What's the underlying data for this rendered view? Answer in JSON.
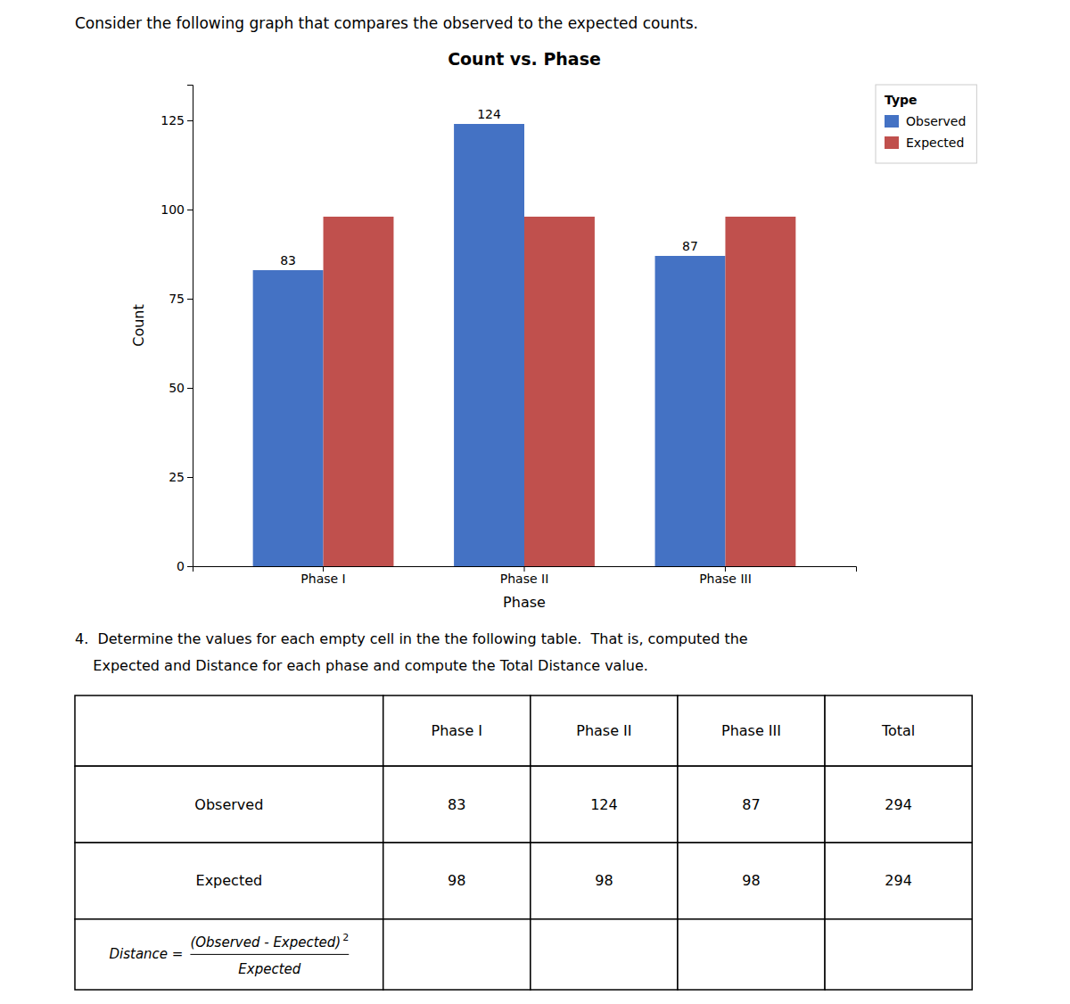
{
  "intro": "Consider the following graph that compares the observed to the expected counts.",
  "chart_data": {
    "type": "bar",
    "title": "Count vs. Phase",
    "categories": [
      "Phase I",
      "Phase II",
      "Phase III"
    ],
    "series": [
      {
        "name": "Observed",
        "color": "#4472C4",
        "values": [
          83,
          124,
          87
        ],
        "data_labels": true
      },
      {
        "name": "Expected",
        "color": "#C0504D",
        "values": [
          98,
          98,
          98
        ]
      }
    ],
    "xlabel": "Phase",
    "ylabel": "Count",
    "ylim": [
      0,
      135
    ],
    "yticks": [
      0,
      25,
      50,
      75,
      100,
      125
    ],
    "legend": "right",
    "legend_title": "Type",
    "grid": false
  },
  "question": [
    "4.  Determine the values for each empty cell in the the following table.  That is, computed the",
    "    Expected and Distance for each phase and compute the Total Distance value."
  ],
  "table": {
    "columns": [
      null,
      "Phase I",
      "Phase II",
      "Phase III",
      "Total"
    ],
    "rows": [
      {
        "label": "Observed",
        "cells": [
          "83",
          "124",
          "87",
          "294"
        ]
      },
      {
        "label": "Expected",
        "cells": [
          "98",
          "98",
          "98",
          "294"
        ]
      },
      {
        "formula": {
          "lhs": "Distance =",
          "numerator": "(Observed - Expected)",
          "exponent": "2",
          "denominator": "Expected"
        }
      }
    ]
  }
}
